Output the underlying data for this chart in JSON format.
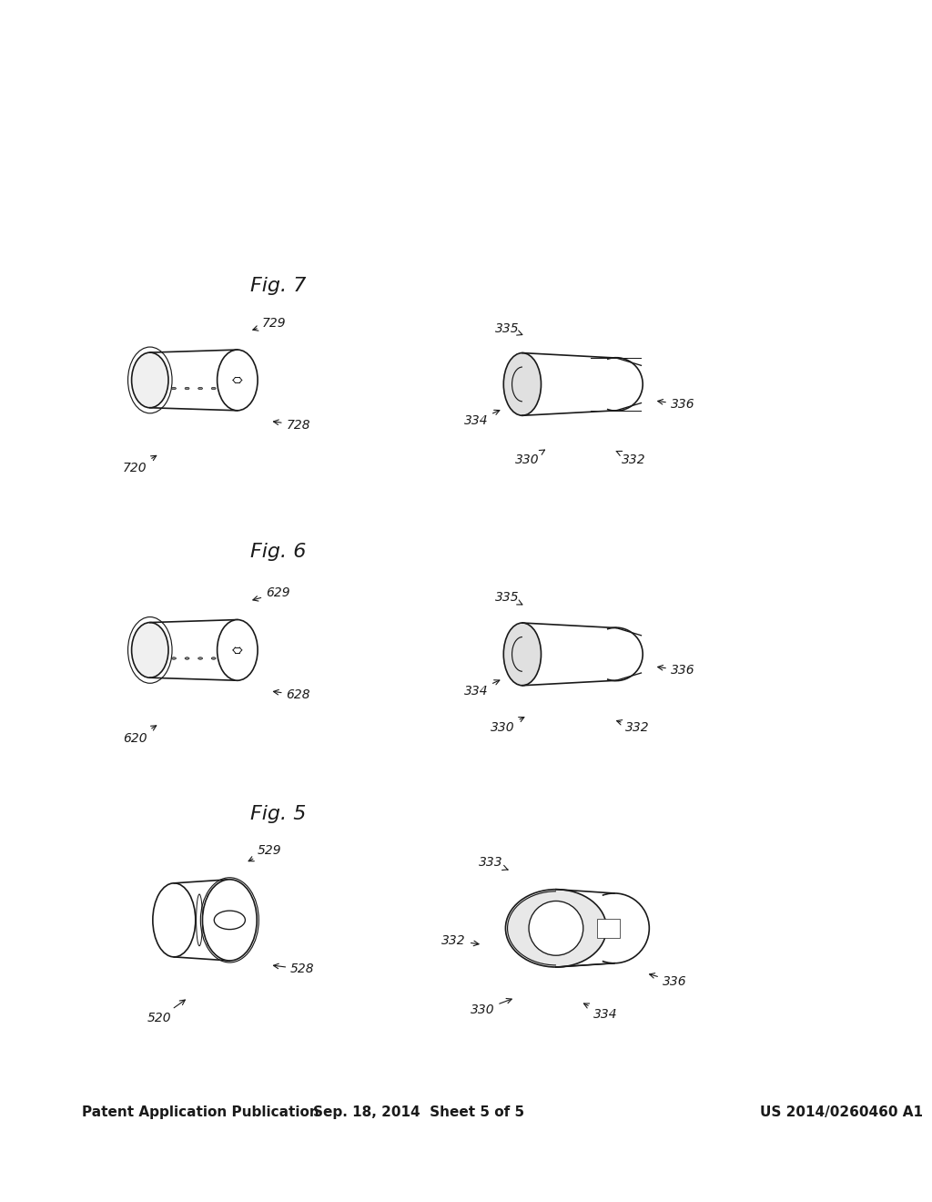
{
  "bg_color": "#ffffff",
  "header_left": "Patent Application Publication",
  "header_center": "Sep. 18, 2014  Sheet 5 of 5",
  "header_right": "US 2014/0260460 A1",
  "header_fontsize": 11,
  "header_bold": true,
  "fig_labels": [
    "Fig. 5",
    "Fig. 6",
    "Fig. 7"
  ],
  "fig_label_fontsize": 16,
  "fig5_left_ref": "520",
  "fig5_left_subs": [
    "528",
    "529"
  ],
  "fig5_right_ref": "330",
  "fig5_right_subs": [
    "334",
    "336",
    "332",
    "333"
  ],
  "fig6_left_ref": "620",
  "fig6_left_subs": [
    "628",
    "629"
  ],
  "fig6_right_ref": "330",
  "fig6_right_subs": [
    "332",
    "334",
    "336",
    "335"
  ],
  "fig7_left_ref": "720",
  "fig7_left_subs": [
    "728",
    "729"
  ],
  "fig7_right_ref": "330",
  "fig7_right_subs": [
    "332",
    "334",
    "336",
    "335"
  ],
  "line_color": "#1a1a1a",
  "line_width": 1.2,
  "annotation_fontsize": 10
}
